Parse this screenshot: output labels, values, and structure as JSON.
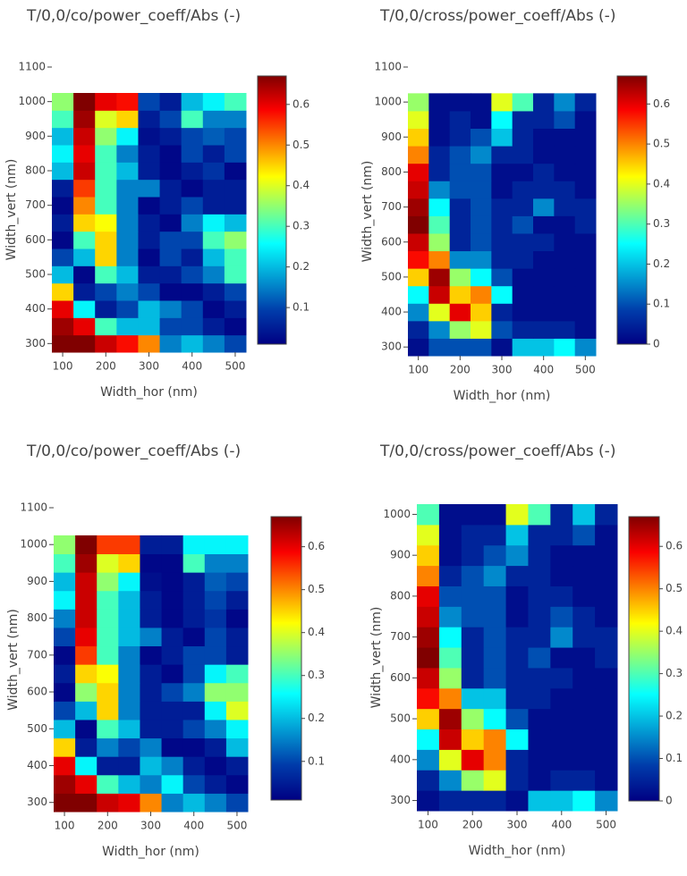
{
  "chart_data": [
    {
      "type": "heatmap",
      "title": "T/0,0/co/power_coeff/Abs (-)",
      "x_label": "Width_hor (nm)",
      "y_label": "Width_vert (nm)",
      "colorscale": "Jet",
      "x": [
        100,
        150,
        200,
        250,
        300,
        350,
        400,
        450,
        500
      ],
      "y": [
        300,
        350,
        400,
        450,
        500,
        550,
        600,
        650,
        700,
        750,
        800,
        850,
        900,
        950,
        1000
      ],
      "xlim": [
        75,
        525
      ],
      "ylim": [
        275,
        1100
      ],
      "xticks": [
        100,
        200,
        300,
        400,
        500
      ],
      "yticks": [
        300,
        400,
        500,
        600,
        700,
        800,
        900,
        1000,
        1100
      ],
      "zlim": [
        0.01,
        0.67
      ],
      "colorbar_ticks": [
        0.1,
        0.2,
        0.3,
        0.4,
        0.5,
        0.6
      ],
      "z": [
        [
          0.67,
          0.67,
          0.62,
          0.58,
          0.5,
          0.15,
          0.2,
          0.15,
          0.1
        ],
        [
          0.65,
          0.6,
          0.3,
          0.2,
          0.2,
          0.1,
          0.1,
          0.05,
          0.02
        ],
        [
          0.6,
          0.25,
          0.05,
          0.1,
          0.2,
          0.15,
          0.1,
          0.02,
          0.05
        ],
        [
          0.45,
          0.05,
          0.1,
          0.15,
          0.1,
          0.02,
          0.02,
          0.05,
          0.1
        ],
        [
          0.2,
          0.02,
          0.3,
          0.2,
          0.05,
          0.05,
          0.1,
          0.15,
          0.3
        ],
        [
          0.1,
          0.2,
          0.45,
          0.15,
          0.02,
          0.1,
          0.05,
          0.2,
          0.3
        ],
        [
          0.02,
          0.3,
          0.45,
          0.15,
          0.05,
          0.1,
          0.1,
          0.3,
          0.35
        ],
        [
          0.05,
          0.45,
          0.42,
          0.15,
          0.05,
          0.02,
          0.15,
          0.25,
          0.2
        ],
        [
          0.02,
          0.5,
          0.3,
          0.15,
          0.02,
          0.05,
          0.1,
          0.05,
          0.05
        ],
        [
          0.05,
          0.55,
          0.3,
          0.15,
          0.15,
          0.05,
          0.02,
          0.05,
          0.05
        ],
        [
          0.2,
          0.62,
          0.3,
          0.2,
          0.05,
          0.02,
          0.05,
          0.08,
          0.02
        ],
        [
          0.25,
          0.6,
          0.3,
          0.15,
          0.05,
          0.02,
          0.1,
          0.05,
          0.1
        ],
        [
          0.2,
          0.62,
          0.35,
          0.25,
          0.03,
          0.05,
          0.1,
          0.12,
          0.1
        ],
        [
          0.3,
          0.65,
          0.4,
          0.45,
          0.05,
          0.1,
          0.3,
          0.15,
          0.15
        ],
        [
          0.35,
          0.67,
          0.6,
          0.58,
          0.1,
          0.05,
          0.2,
          0.25,
          0.3
        ]
      ]
    },
    {
      "type": "heatmap",
      "title": "T/0,0/cross/power_coeff/Abs (-)",
      "x_label": "Width_hor (nm)",
      "y_label": "Width_vert (nm)",
      "colorscale": "Jet",
      "x": [
        100,
        150,
        200,
        250,
        300,
        350,
        400,
        450,
        500
      ],
      "y": [
        300,
        350,
        400,
        450,
        500,
        550,
        600,
        650,
        700,
        750,
        800,
        850,
        900,
        950,
        1000
      ],
      "xlim": [
        75,
        525
      ],
      "ylim": [
        275,
        1100
      ],
      "xticks": [
        100,
        200,
        300,
        400,
        500
      ],
      "yticks": [
        300,
        400,
        500,
        600,
        700,
        800,
        900,
        1000,
        1100
      ],
      "zlim": [
        0,
        0.67
      ],
      "colorbar_ticks": [
        0,
        0.1,
        0.2,
        0.3,
        0.4,
        0.5,
        0.6
      ],
      "z": [
        [
          0.02,
          0.1,
          0.1,
          0.1,
          0.02,
          0.2,
          0.2,
          0.25,
          0.15
        ],
        [
          0.05,
          0.15,
          0.35,
          0.4,
          0.1,
          0.05,
          0.05,
          0.05,
          0.02
        ],
        [
          0.15,
          0.4,
          0.6,
          0.45,
          0.05,
          0.02,
          0.02,
          0.02,
          0.02
        ],
        [
          0.25,
          0.62,
          0.45,
          0.5,
          0.25,
          0.02,
          0.02,
          0.02,
          0.02
        ],
        [
          0.45,
          0.65,
          0.35,
          0.25,
          0.1,
          0.02,
          0.02,
          0.02,
          0.02
        ],
        [
          0.58,
          0.5,
          0.15,
          0.15,
          0.05,
          0.05,
          0.02,
          0.02,
          0.02
        ],
        [
          0.62,
          0.35,
          0.05,
          0.1,
          0.05,
          0.05,
          0.05,
          0.02,
          0.02
        ],
        [
          0.67,
          0.3,
          0.05,
          0.1,
          0.05,
          0.1,
          0.02,
          0.02,
          0.05
        ],
        [
          0.65,
          0.25,
          0.05,
          0.1,
          0.05,
          0.05,
          0.15,
          0.05,
          0.05
        ],
        [
          0.62,
          0.15,
          0.1,
          0.1,
          0.02,
          0.05,
          0.05,
          0.05,
          0.02
        ],
        [
          0.6,
          0.05,
          0.1,
          0.1,
          0.02,
          0.02,
          0.05,
          0.02,
          0.02
        ],
        [
          0.5,
          0.05,
          0.1,
          0.15,
          0.05,
          0.05,
          0.02,
          0.02,
          0.02
        ],
        [
          0.45,
          0.02,
          0.05,
          0.1,
          0.2,
          0.05,
          0.02,
          0.02,
          0.02
        ],
        [
          0.4,
          0.02,
          0.05,
          0.02,
          0.25,
          0.05,
          0.05,
          0.1,
          0.02
        ],
        [
          0.35,
          0.02,
          0.02,
          0.02,
          0.4,
          0.3,
          0.05,
          0.15,
          0.05
        ]
      ]
    },
    {
      "type": "heatmap",
      "title": "T/0,0/co/power_coeff/Abs (-)",
      "x_label": "Width_hor (nm)",
      "y_label": "Width_vert (nm)",
      "colorscale": "Jet",
      "x": [
        100,
        150,
        200,
        250,
        300,
        350,
        400,
        450,
        500
      ],
      "y": [
        300,
        350,
        400,
        450,
        500,
        550,
        600,
        650,
        700,
        750,
        800,
        850,
        900,
        950,
        1000
      ],
      "xlim": [
        75,
        525
      ],
      "ylim": [
        275,
        1100
      ],
      "xticks": [
        100,
        200,
        300,
        400,
        500
      ],
      "yticks": [
        300,
        400,
        500,
        600,
        700,
        800,
        900,
        1000,
        1100
      ],
      "zlim": [
        0.01,
        0.67
      ],
      "colorbar_ticks": [
        0.1,
        0.2,
        0.3,
        0.4,
        0.5,
        0.6
      ],
      "z": [
        [
          0.67,
          0.67,
          0.62,
          0.6,
          0.5,
          0.15,
          0.2,
          0.15,
          0.1
        ],
        [
          0.65,
          0.6,
          0.3,
          0.2,
          0.15,
          0.25,
          0.1,
          0.05,
          0.02
        ],
        [
          0.6,
          0.25,
          0.05,
          0.05,
          0.2,
          0.15,
          0.05,
          0.02,
          0.05
        ],
        [
          0.45,
          0.05,
          0.15,
          0.1,
          0.15,
          0.02,
          0.02,
          0.05,
          0.2
        ],
        [
          0.2,
          0.02,
          0.3,
          0.2,
          0.05,
          0.05,
          0.1,
          0.15,
          0.25
        ],
        [
          0.1,
          0.2,
          0.45,
          0.15,
          0.05,
          0.05,
          0.05,
          0.25,
          0.4
        ],
        [
          0.02,
          0.35,
          0.45,
          0.15,
          0.05,
          0.1,
          0.15,
          0.35,
          0.35
        ],
        [
          0.05,
          0.45,
          0.42,
          0.15,
          0.05,
          0.02,
          0.1,
          0.25,
          0.3
        ],
        [
          0.02,
          0.55,
          0.3,
          0.15,
          0.02,
          0.05,
          0.1,
          0.1,
          0.05
        ],
        [
          0.1,
          0.6,
          0.3,
          0.2,
          0.15,
          0.05,
          0.02,
          0.1,
          0.05
        ],
        [
          0.15,
          0.62,
          0.3,
          0.2,
          0.05,
          0.02,
          0.05,
          0.08,
          0.02
        ],
        [
          0.25,
          0.62,
          0.3,
          0.2,
          0.05,
          0.02,
          0.05,
          0.1,
          0.05
        ],
        [
          0.2,
          0.62,
          0.35,
          0.25,
          0.03,
          0.02,
          0.05,
          0.12,
          0.1
        ],
        [
          0.3,
          0.65,
          0.4,
          0.45,
          0.02,
          0.02,
          0.3,
          0.15,
          0.15
        ],
        [
          0.35,
          0.67,
          0.55,
          0.55,
          0.05,
          0.05,
          0.25,
          0.25,
          0.25
        ]
      ]
    },
    {
      "type": "heatmap",
      "title": "T/0,0/cross/power_coeff/Abs (-)",
      "x_label": "Width_hor (nm)",
      "y_label": "Width_vert (nm)",
      "colorscale": "Jet",
      "x": [
        100,
        150,
        200,
        250,
        300,
        350,
        400,
        450,
        500
      ],
      "y": [
        300,
        350,
        400,
        450,
        500,
        550,
        600,
        650,
        700,
        750,
        800,
        850,
        900,
        950,
        1000
      ],
      "xlim": [
        75,
        525
      ],
      "ylim": [
        275,
        1025
      ],
      "xticks": [
        100,
        200,
        300,
        400,
        500
      ],
      "yticks": [
        300,
        400,
        500,
        600,
        700,
        800,
        900,
        1000
      ],
      "zlim": [
        0,
        0.67
      ],
      "colorbar_ticks": [
        0,
        0.1,
        0.2,
        0.3,
        0.4,
        0.5,
        0.6
      ],
      "z": [
        [
          0.02,
          0.05,
          0.05,
          0.05,
          0.02,
          0.2,
          0.2,
          0.25,
          0.15
        ],
        [
          0.05,
          0.15,
          0.35,
          0.4,
          0.05,
          0.02,
          0.05,
          0.05,
          0.02
        ],
        [
          0.15,
          0.4,
          0.6,
          0.5,
          0.05,
          0.02,
          0.02,
          0.02,
          0.02
        ],
        [
          0.25,
          0.62,
          0.45,
          0.5,
          0.25,
          0.02,
          0.02,
          0.02,
          0.02
        ],
        [
          0.45,
          0.65,
          0.35,
          0.25,
          0.1,
          0.02,
          0.02,
          0.02,
          0.02
        ],
        [
          0.58,
          0.5,
          0.2,
          0.2,
          0.05,
          0.05,
          0.02,
          0.02,
          0.02
        ],
        [
          0.62,
          0.35,
          0.05,
          0.1,
          0.05,
          0.05,
          0.05,
          0.02,
          0.02
        ],
        [
          0.67,
          0.3,
          0.05,
          0.1,
          0.05,
          0.1,
          0.02,
          0.02,
          0.05
        ],
        [
          0.65,
          0.25,
          0.05,
          0.1,
          0.05,
          0.05,
          0.15,
          0.05,
          0.05
        ],
        [
          0.62,
          0.15,
          0.1,
          0.1,
          0.02,
          0.05,
          0.1,
          0.05,
          0.02
        ],
        [
          0.6,
          0.1,
          0.1,
          0.1,
          0.02,
          0.05,
          0.05,
          0.02,
          0.02
        ],
        [
          0.5,
          0.05,
          0.1,
          0.15,
          0.05,
          0.05,
          0.02,
          0.02,
          0.02
        ],
        [
          0.45,
          0.02,
          0.05,
          0.1,
          0.15,
          0.05,
          0.02,
          0.02,
          0.02
        ],
        [
          0.4,
          0.02,
          0.05,
          0.05,
          0.2,
          0.05,
          0.05,
          0.1,
          0.02
        ],
        [
          0.3,
          0.02,
          0.02,
          0.02,
          0.4,
          0.3,
          0.05,
          0.2,
          0.05
        ]
      ]
    }
  ]
}
